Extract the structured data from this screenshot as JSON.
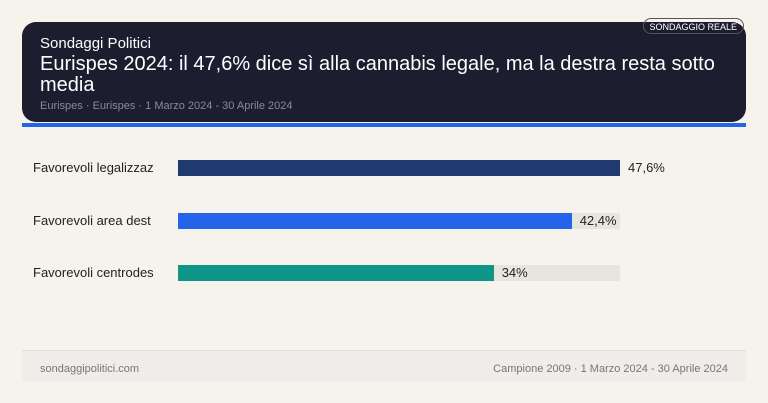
{
  "header": {
    "brand": "Sondaggi Politici",
    "title": "Eurispes 2024: il 47,6% dice sì alla cannabis legale, ma la destra resta sotto media",
    "meta": "Eurispes · Eurispes · 1 Marzo 2024 - 30 Aprile 2024",
    "badge": "SONDAGGIO REALE"
  },
  "colors": {
    "accent": "#2563eb",
    "header_bg": "#1c1d2e"
  },
  "chart_data": {
    "type": "bar",
    "orientation": "horizontal",
    "categories": [
      "Favorevoli legalizzaz",
      "Favorevoli area dest",
      "Favorevoli centrodes"
    ],
    "values": [
      47.6,
      42.4,
      34
    ],
    "value_labels": [
      "47,6%",
      "42,4%",
      "34%"
    ],
    "colors": [
      "#1e3a6e",
      "#2563eb",
      "#0f9488"
    ],
    "xlim": [
      0,
      47.6
    ]
  },
  "footer": {
    "left": "sondaggipolitici.com",
    "right": "Campione 2009 · 1 Marzo 2024 - 30 Aprile 2024"
  }
}
